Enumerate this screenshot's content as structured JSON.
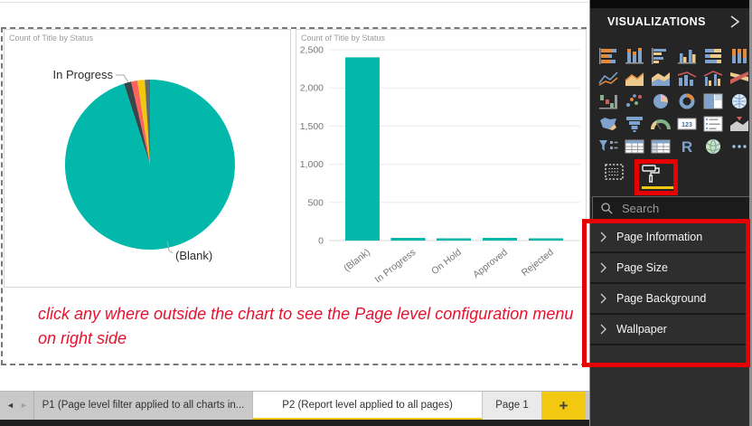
{
  "colors": {
    "accent_yellow": "#F2C811",
    "teal": "#01B8AA",
    "highlight_red": "#E60000",
    "annotation_red": "#E8112D",
    "panel_bg": "#252525"
  },
  "chart_data": [
    {
      "type": "pie",
      "title": "Count of Title by Status",
      "categories": [
        "(Blank)",
        "In Progress",
        "On Hold",
        "Approved",
        "Rejected"
      ],
      "values": [
        2400,
        35,
        30,
        35,
        25
      ],
      "colors": [
        "#01B8AA",
        "#374649",
        "#FD625E",
        "#F2C80F",
        "#5F6B6D"
      ],
      "labels_shown": [
        "In Progress",
        "(Blank)"
      ],
      "legend": "none"
    },
    {
      "type": "bar",
      "title": "Count of Title by Status",
      "categories": [
        "(Blank)",
        "In Progress",
        "On Hold",
        "Approved",
        "Rejected"
      ],
      "values": [
        2400,
        35,
        30,
        35,
        25
      ],
      "bar_color": "#01B8AA",
      "ylim": [
        0,
        2500
      ],
      "ytick_labels": [
        "0",
        "500",
        "1,000",
        "1,500",
        "2,000",
        "2,500"
      ],
      "grid": true,
      "x_label_rotation": -38
    }
  ],
  "annotation": {
    "line1": "click any where outside the chart to see the Page level configuration menu",
    "line2": "on right side"
  },
  "page_tabs": {
    "prev_arrow": "◄",
    "next_arrow": "►",
    "tabs": [
      {
        "label": "P1 (Page level filter applied to all charts in...",
        "active": false
      },
      {
        "label": "P2 (Report level applied to all pages)",
        "active": true
      },
      {
        "label": "Page 1",
        "active": false
      }
    ],
    "add_button": "+"
  },
  "visualizations_panel": {
    "title": "VISUALIZATIONS",
    "icons": [
      "stacked-bar-chart",
      "stacked-column-chart",
      "clustered-bar-chart",
      "clustered-column-chart",
      "100-stacked-bar-chart",
      "100-stacked-column-chart",
      "line-chart",
      "area-chart",
      "stacked-area-chart",
      "line-and-stacked-column-chart",
      "line-and-clustered-column-chart",
      "ribbon-chart",
      "waterfall-chart",
      "scatter-chart",
      "pie-chart",
      "donut-chart",
      "treemap",
      "map",
      "filled-map",
      "funnel",
      "gauge",
      "card",
      "multi-row-card",
      "kpi",
      "slicer",
      "table",
      "matrix",
      "r-script-visual",
      "arcgis-map",
      "more-options"
    ],
    "pane_tabs": [
      {
        "name": "fields",
        "active": false
      },
      {
        "name": "format",
        "active": true
      }
    ],
    "search": {
      "placeholder": "Search"
    },
    "sections": [
      {
        "label": "Page Information"
      },
      {
        "label": "Page Size"
      },
      {
        "label": "Page Background"
      },
      {
        "label": "Wallpaper"
      }
    ]
  }
}
